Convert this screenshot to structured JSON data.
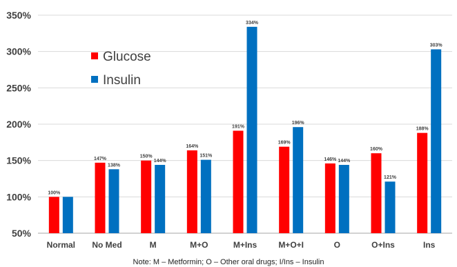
{
  "chart_data": {
    "type": "bar",
    "categories": [
      "Normal",
      "No Med",
      "M",
      "M+O",
      "M+Ins",
      "M+O+I",
      "O",
      "O+Ins",
      "Ins"
    ],
    "series": [
      {
        "name": "Glucose",
        "color": "#ff0000",
        "values": [
          100,
          147,
          150,
          164,
          191,
          169,
          146,
          160,
          188
        ],
        "labels": [
          "100%",
          "147%",
          "150%",
          "164%",
          "191%",
          "169%",
          "146%",
          "160%",
          "188%"
        ]
      },
      {
        "name": "Insulin",
        "color": "#0070c0",
        "values": [
          100,
          138,
          144,
          151,
          334,
          196,
          144,
          121,
          303
        ],
        "labels": [
          "",
          "138%",
          "144%",
          "151%",
          "334%",
          "196%",
          "144%",
          "121%",
          "303%"
        ]
      }
    ],
    "ylim": [
      50,
      350
    ],
    "ytick_values": [
      50,
      100,
      150,
      200,
      250,
      300,
      350
    ],
    "ytick_labels": [
      "50%",
      "100%",
      "150%",
      "200%",
      "250%",
      "300%",
      "350%"
    ],
    "grid": true,
    "legend": "upper-left",
    "note": "Note: M – Metformin; O – Other oral drugs; I/Ins – Insulin"
  }
}
